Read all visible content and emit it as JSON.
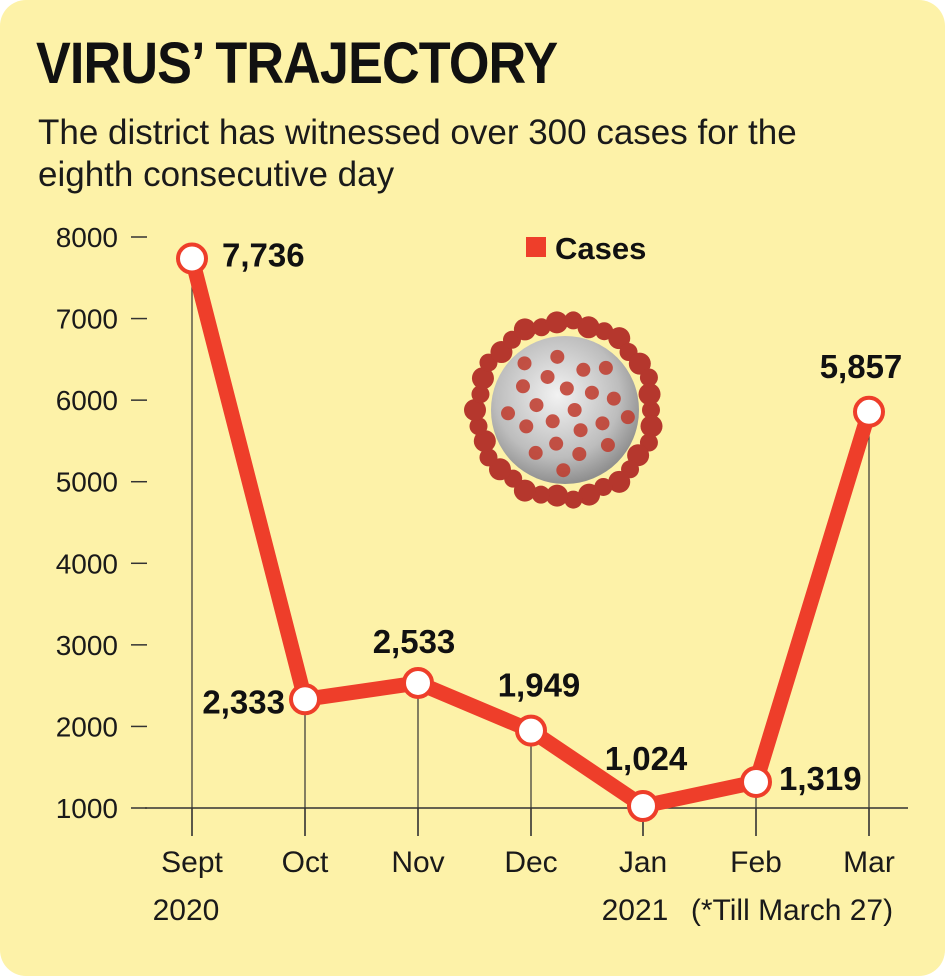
{
  "title": "VIRUS’ TRAJECTORY",
  "subtitle": "The district has witnessed over 300 cases for the eighth consecutive day",
  "colors": {
    "background": "#fdf2a8",
    "line": "#ee3e2a",
    "marker_fill": "#ffffff",
    "axis": "#333333"
  },
  "chart_data": {
    "type": "line",
    "categories": [
      "Sept",
      "Oct",
      "Nov",
      "Dec",
      "Jan",
      "Feb",
      "Mar"
    ],
    "category_sublabels": [
      "2020",
      "",
      "",
      "",
      "2021",
      "(*Till March 27)",
      ""
    ],
    "series": [
      {
        "name": "Cases",
        "values": [
          7736,
          2333,
          2533,
          1949,
          1024,
          1319,
          5857
        ],
        "labels": [
          "7,736",
          "2,333",
          "2,533",
          "1,949",
          "1,024",
          "1,319",
          "5,857"
        ]
      }
    ],
    "yticks": [
      1000,
      2000,
      3000,
      4000,
      5000,
      6000,
      7000,
      8000
    ],
    "ylim": [
      1000,
      8000
    ],
    "grid": false,
    "legend": "top-center",
    "decoration": "coronavirus-icon"
  }
}
